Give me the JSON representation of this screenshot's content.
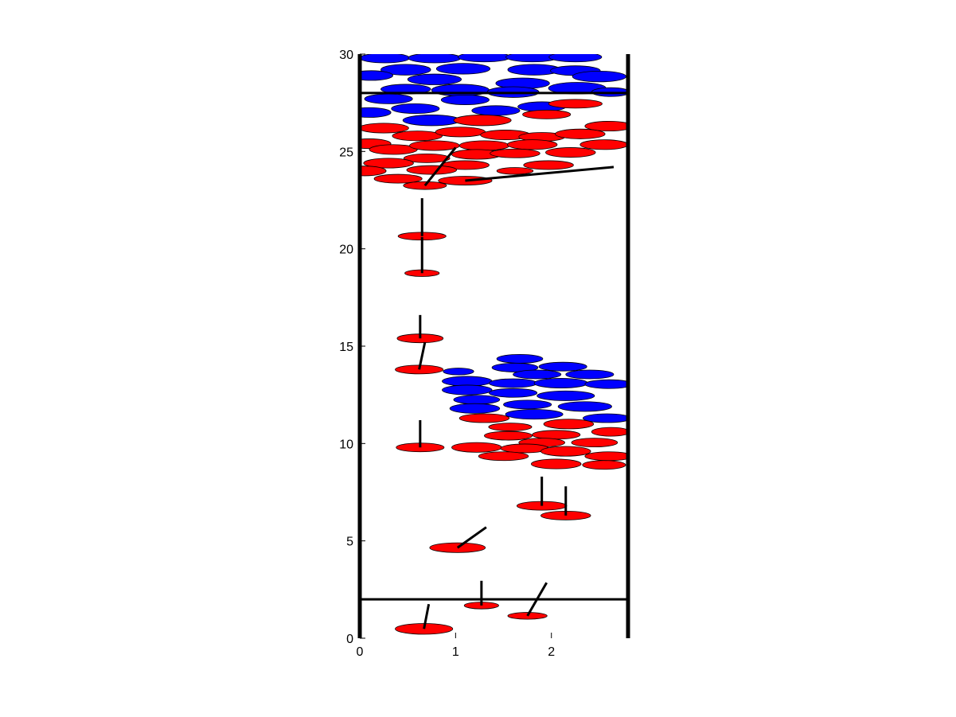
{
  "chart_data": {
    "type": "scatter",
    "title": "",
    "xlabel": "",
    "ylabel": "",
    "xlim": [
      0,
      2.8
    ],
    "ylim": [
      0,
      30
    ],
    "x_ticks": [
      {
        "value": 0,
        "label": "0"
      },
      {
        "value": 1,
        "label": "1"
      },
      {
        "value": 2,
        "label": "2"
      }
    ],
    "y_ticks": [
      {
        "value": 0,
        "label": "0"
      },
      {
        "value": 5,
        "label": "5"
      },
      {
        "value": 10,
        "label": "10"
      },
      {
        "value": 15,
        "label": "15"
      },
      {
        "value": 20,
        "label": "20"
      },
      {
        "value": 25,
        "label": "25"
      },
      {
        "value": 30,
        "label": "30"
      }
    ],
    "grid": false,
    "colors": {
      "red": "#ff0000",
      "blue": "#0000ff",
      "line": "#000000"
    },
    "boundary_lines": [
      {
        "y1": 28.0,
        "y2": 28.0
      },
      {
        "y1": 2.0,
        "y2": 2.0
      }
    ],
    "walls": [
      {
        "x": 0
      },
      {
        "x": 2.8
      }
    ],
    "ellipses": [
      {
        "x": 0.26,
        "y": 29.8,
        "w": 0.52,
        "h": 0.5,
        "color": "blue"
      },
      {
        "x": 0.78,
        "y": 29.8,
        "w": 0.55,
        "h": 0.5,
        "color": "blue"
      },
      {
        "x": 1.3,
        "y": 29.85,
        "w": 0.55,
        "h": 0.5,
        "color": "blue"
      },
      {
        "x": 1.8,
        "y": 29.85,
        "w": 0.55,
        "h": 0.5,
        "color": "blue"
      },
      {
        "x": 2.25,
        "y": 29.85,
        "w": 0.55,
        "h": 0.5,
        "color": "blue"
      },
      {
        "x": 0.48,
        "y": 29.2,
        "w": 0.52,
        "h": 0.55,
        "color": "blue"
      },
      {
        "x": 1.08,
        "y": 29.25,
        "w": 0.56,
        "h": 0.55,
        "color": "blue"
      },
      {
        "x": 1.82,
        "y": 29.2,
        "w": 0.55,
        "h": 0.55,
        "color": "blue"
      },
      {
        "x": 2.25,
        "y": 29.15,
        "w": 0.52,
        "h": 0.5,
        "color": "blue"
      },
      {
        "x": 0.12,
        "y": 28.9,
        "w": 0.45,
        "h": 0.5,
        "color": "blue"
      },
      {
        "x": 0.78,
        "y": 28.7,
        "w": 0.56,
        "h": 0.55,
        "color": "blue"
      },
      {
        "x": 1.7,
        "y": 28.5,
        "w": 0.56,
        "h": 0.55,
        "color": "blue"
      },
      {
        "x": 2.5,
        "y": 28.85,
        "w": 0.56,
        "h": 0.55,
        "color": "blue"
      },
      {
        "x": 0.48,
        "y": 28.2,
        "w": 0.52,
        "h": 0.5,
        "color": "blue"
      },
      {
        "x": 1.05,
        "y": 28.15,
        "w": 0.6,
        "h": 0.6,
        "color": "blue"
      },
      {
        "x": 1.6,
        "y": 28.05,
        "w": 0.54,
        "h": 0.55,
        "color": "blue"
      },
      {
        "x": 2.27,
        "y": 28.25,
        "w": 0.6,
        "h": 0.6,
        "color": "blue"
      },
      {
        "x": 2.62,
        "y": 28.05,
        "w": 0.4,
        "h": 0.45,
        "color": "blue"
      },
      {
        "x": 0.3,
        "y": 27.7,
        "w": 0.5,
        "h": 0.5,
        "color": "blue"
      },
      {
        "x": 0.58,
        "y": 27.2,
        "w": 0.5,
        "h": 0.5,
        "color": "blue"
      },
      {
        "x": 0.1,
        "y": 27.0,
        "w": 0.45,
        "h": 0.5,
        "color": "blue"
      },
      {
        "x": 1.1,
        "y": 27.65,
        "w": 0.5,
        "h": 0.5,
        "color": "blue"
      },
      {
        "x": 1.42,
        "y": 27.1,
        "w": 0.5,
        "h": 0.5,
        "color": "blue"
      },
      {
        "x": 1.9,
        "y": 27.3,
        "w": 0.5,
        "h": 0.5,
        "color": "blue"
      },
      {
        "x": 0.75,
        "y": 26.6,
        "w": 0.6,
        "h": 0.55,
        "color": "blue"
      },
      {
        "x": 2.25,
        "y": 27.45,
        "w": 0.56,
        "h": 0.45,
        "color": "red"
      },
      {
        "x": 1.95,
        "y": 26.9,
        "w": 0.5,
        "h": 0.45,
        "color": "red"
      },
      {
        "x": 1.28,
        "y": 26.6,
        "w": 0.6,
        "h": 0.55,
        "color": "red"
      },
      {
        "x": 0.25,
        "y": 26.2,
        "w": 0.52,
        "h": 0.5,
        "color": "red"
      },
      {
        "x": 2.6,
        "y": 26.3,
        "w": 0.5,
        "h": 0.5,
        "color": "red"
      },
      {
        "x": 0.6,
        "y": 25.8,
        "w": 0.52,
        "h": 0.5,
        "color": "red"
      },
      {
        "x": 1.05,
        "y": 26.0,
        "w": 0.52,
        "h": 0.5,
        "color": "red"
      },
      {
        "x": 1.52,
        "y": 25.85,
        "w": 0.52,
        "h": 0.5,
        "color": "red"
      },
      {
        "x": 1.9,
        "y": 25.75,
        "w": 0.48,
        "h": 0.45,
        "color": "red"
      },
      {
        "x": 2.3,
        "y": 25.9,
        "w": 0.52,
        "h": 0.5,
        "color": "red"
      },
      {
        "x": 0.1,
        "y": 25.4,
        "w": 0.45,
        "h": 0.5,
        "color": "red"
      },
      {
        "x": 0.35,
        "y": 25.1,
        "w": 0.5,
        "h": 0.5,
        "color": "red"
      },
      {
        "x": 0.78,
        "y": 25.3,
        "w": 0.52,
        "h": 0.5,
        "color": "red"
      },
      {
        "x": 1.3,
        "y": 25.3,
        "w": 0.52,
        "h": 0.5,
        "color": "red"
      },
      {
        "x": 1.8,
        "y": 25.35,
        "w": 0.52,
        "h": 0.5,
        "color": "red"
      },
      {
        "x": 2.55,
        "y": 25.35,
        "w": 0.5,
        "h": 0.5,
        "color": "red"
      },
      {
        "x": 1.22,
        "y": 24.85,
        "w": 0.52,
        "h": 0.5,
        "color": "red"
      },
      {
        "x": 2.2,
        "y": 24.95,
        "w": 0.52,
        "h": 0.5,
        "color": "red"
      },
      {
        "x": 0.7,
        "y": 24.65,
        "w": 0.48,
        "h": 0.45,
        "color": "red"
      },
      {
        "x": 1.62,
        "y": 24.9,
        "w": 0.52,
        "h": 0.45,
        "color": "red"
      },
      {
        "x": 0.3,
        "y": 24.4,
        "w": 0.52,
        "h": 0.5,
        "color": "red"
      },
      {
        "x": 1.1,
        "y": 24.3,
        "w": 0.5,
        "h": 0.45,
        "color": "red"
      },
      {
        "x": 1.97,
        "y": 24.3,
        "w": 0.52,
        "h": 0.45,
        "color": "red"
      },
      {
        "x": 0.75,
        "y": 24.05,
        "w": 0.52,
        "h": 0.45,
        "color": "red"
      },
      {
        "x": 0.05,
        "y": 24.0,
        "w": 0.45,
        "h": 0.5,
        "color": "red"
      },
      {
        "x": 1.62,
        "y": 24.0,
        "w": 0.38,
        "h": 0.35,
        "color": "red"
      },
      {
        "x": 0.4,
        "y": 23.6,
        "w": 0.5,
        "h": 0.45,
        "color": "red"
      },
      {
        "x": 1.1,
        "y": 23.5,
        "w": 0.56,
        "h": 0.45,
        "color": "red"
      },
      {
        "x": 0.68,
        "y": 23.25,
        "w": 0.45,
        "h": 0.4,
        "color": "red"
      },
      {
        "x": 0.65,
        "y": 20.65,
        "w": 0.5,
        "h": 0.4,
        "color": "red"
      },
      {
        "x": 0.65,
        "y": 18.75,
        "w": 0.36,
        "h": 0.35,
        "color": "red"
      },
      {
        "x": 0.63,
        "y": 15.4,
        "w": 0.48,
        "h": 0.45,
        "color": "red"
      },
      {
        "x": 0.62,
        "y": 13.8,
        "w": 0.5,
        "h": 0.45,
        "color": "red"
      },
      {
        "x": 0.63,
        "y": 9.8,
        "w": 0.5,
        "h": 0.45,
        "color": "red"
      },
      {
        "x": 1.67,
        "y": 14.35,
        "w": 0.48,
        "h": 0.45,
        "color": "blue"
      },
      {
        "x": 1.62,
        "y": 13.9,
        "w": 0.48,
        "h": 0.45,
        "color": "blue"
      },
      {
        "x": 2.12,
        "y": 13.95,
        "w": 0.5,
        "h": 0.45,
        "color": "blue"
      },
      {
        "x": 1.03,
        "y": 13.7,
        "w": 0.32,
        "h": 0.35,
        "color": "blue"
      },
      {
        "x": 1.85,
        "y": 13.55,
        "w": 0.5,
        "h": 0.45,
        "color": "blue"
      },
      {
        "x": 2.4,
        "y": 13.55,
        "w": 0.5,
        "h": 0.45,
        "color": "blue"
      },
      {
        "x": 1.12,
        "y": 13.2,
        "w": 0.52,
        "h": 0.5,
        "color": "blue"
      },
      {
        "x": 1.6,
        "y": 13.1,
        "w": 0.5,
        "h": 0.45,
        "color": "blue"
      },
      {
        "x": 2.1,
        "y": 13.1,
        "w": 0.56,
        "h": 0.5,
        "color": "blue"
      },
      {
        "x": 2.6,
        "y": 13.05,
        "w": 0.5,
        "h": 0.45,
        "color": "blue"
      },
      {
        "x": 1.12,
        "y": 12.75,
        "w": 0.52,
        "h": 0.5,
        "color": "blue"
      },
      {
        "x": 1.6,
        "y": 12.6,
        "w": 0.5,
        "h": 0.45,
        "color": "blue"
      },
      {
        "x": 2.15,
        "y": 12.45,
        "w": 0.6,
        "h": 0.5,
        "color": "blue"
      },
      {
        "x": 1.22,
        "y": 12.25,
        "w": 0.48,
        "h": 0.45,
        "color": "blue"
      },
      {
        "x": 1.75,
        "y": 12.0,
        "w": 0.5,
        "h": 0.45,
        "color": "blue"
      },
      {
        "x": 2.35,
        "y": 11.9,
        "w": 0.56,
        "h": 0.5,
        "color": "blue"
      },
      {
        "x": 1.2,
        "y": 11.8,
        "w": 0.52,
        "h": 0.5,
        "color": "blue"
      },
      {
        "x": 1.82,
        "y": 11.5,
        "w": 0.6,
        "h": 0.5,
        "color": "blue"
      },
      {
        "x": 2.58,
        "y": 11.3,
        "w": 0.5,
        "h": 0.45,
        "color": "blue"
      },
      {
        "x": 1.3,
        "y": 11.3,
        "w": 0.52,
        "h": 0.45,
        "color": "red"
      },
      {
        "x": 2.18,
        "y": 11.0,
        "w": 0.52,
        "h": 0.5,
        "color": "red"
      },
      {
        "x": 1.57,
        "y": 10.85,
        "w": 0.45,
        "h": 0.4,
        "color": "red"
      },
      {
        "x": 2.62,
        "y": 10.6,
        "w": 0.4,
        "h": 0.45,
        "color": "red"
      },
      {
        "x": 1.55,
        "y": 10.4,
        "w": 0.5,
        "h": 0.45,
        "color": "red"
      },
      {
        "x": 2.05,
        "y": 10.45,
        "w": 0.5,
        "h": 0.45,
        "color": "red"
      },
      {
        "x": 1.9,
        "y": 10.05,
        "w": 0.48,
        "h": 0.45,
        "color": "red"
      },
      {
        "x": 2.45,
        "y": 10.05,
        "w": 0.48,
        "h": 0.45,
        "color": "red"
      },
      {
        "x": 1.22,
        "y": 9.8,
        "w": 0.52,
        "h": 0.5,
        "color": "red"
      },
      {
        "x": 1.72,
        "y": 9.75,
        "w": 0.5,
        "h": 0.45,
        "color": "red"
      },
      {
        "x": 2.15,
        "y": 9.6,
        "w": 0.52,
        "h": 0.5,
        "color": "red"
      },
      {
        "x": 1.5,
        "y": 9.35,
        "w": 0.52,
        "h": 0.45,
        "color": "red"
      },
      {
        "x": 2.6,
        "y": 9.35,
        "w": 0.5,
        "h": 0.45,
        "color": "red"
      },
      {
        "x": 2.05,
        "y": 8.95,
        "w": 0.52,
        "h": 0.5,
        "color": "red"
      },
      {
        "x": 2.55,
        "y": 8.9,
        "w": 0.45,
        "h": 0.45,
        "color": "red"
      },
      {
        "x": 1.9,
        "y": 6.8,
        "w": 0.52,
        "h": 0.45,
        "color": "red"
      },
      {
        "x": 2.15,
        "y": 6.3,
        "w": 0.52,
        "h": 0.45,
        "color": "red"
      },
      {
        "x": 1.02,
        "y": 4.65,
        "w": 0.58,
        "h": 0.5,
        "color": "red"
      },
      {
        "x": 1.27,
        "y": 1.68,
        "w": 0.36,
        "h": 0.35,
        "color": "red"
      },
      {
        "x": 1.75,
        "y": 1.15,
        "w": 0.41,
        "h": 0.35,
        "color": "red"
      },
      {
        "x": 0.67,
        "y": 0.48,
        "w": 0.6,
        "h": 0.55,
        "color": "red"
      }
    ],
    "segments": [
      {
        "x1": 0.68,
        "y1": 23.25,
        "x2": 1.0,
        "y2": 25.2
      },
      {
        "x1": 1.1,
        "y1": 23.5,
        "x2": 2.65,
        "y2": 24.2
      },
      {
        "x1": 0.65,
        "y1": 20.65,
        "x2": 0.65,
        "y2": 22.6
      },
      {
        "x1": 0.65,
        "y1": 18.75,
        "x2": 0.65,
        "y2": 20.6
      },
      {
        "x1": 0.63,
        "y1": 15.4,
        "x2": 0.63,
        "y2": 16.6
      },
      {
        "x1": 0.62,
        "y1": 13.8,
        "x2": 0.68,
        "y2": 15.2
      },
      {
        "x1": 0.63,
        "y1": 9.8,
        "x2": 0.63,
        "y2": 11.2
      },
      {
        "x1": 1.9,
        "y1": 6.8,
        "x2": 1.9,
        "y2": 8.3
      },
      {
        "x1": 2.15,
        "y1": 6.3,
        "x2": 2.15,
        "y2": 7.8
      },
      {
        "x1": 1.02,
        "y1": 4.65,
        "x2": 1.32,
        "y2": 5.7
      },
      {
        "x1": 1.27,
        "y1": 1.68,
        "x2": 1.27,
        "y2": 2.95
      },
      {
        "x1": 1.75,
        "y1": 1.15,
        "x2": 1.95,
        "y2": 2.85
      },
      {
        "x1": 0.67,
        "y1": 0.48,
        "x2": 0.72,
        "y2": 1.75
      }
    ]
  }
}
